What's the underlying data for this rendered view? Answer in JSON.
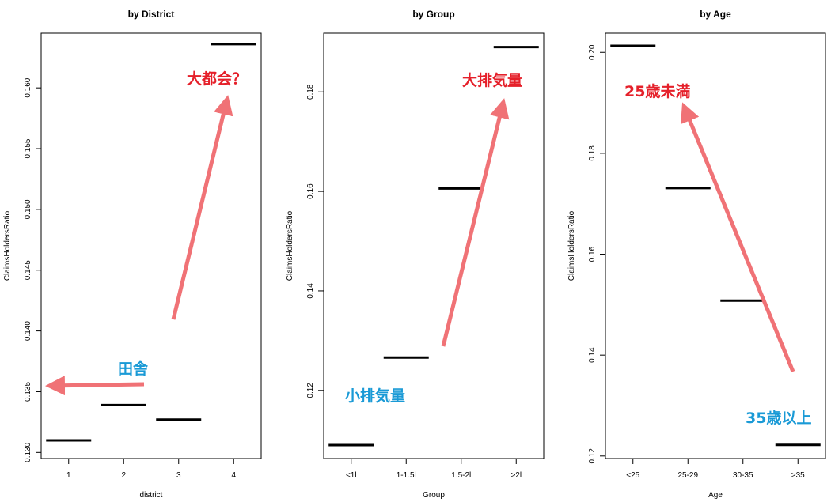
{
  "chart_data": [
    {
      "type": "step",
      "title": "by District",
      "xlabel": "district",
      "ylabel": "ClaimsHoldersRatio",
      "categories": [
        "1",
        "2",
        "3",
        "4"
      ],
      "values": [
        0.131,
        0.1339,
        0.1327,
        0.1636
      ],
      "ylim": [
        0.1295,
        0.1645
      ],
      "yticks": [
        0.13,
        0.135,
        0.14,
        0.145,
        0.15,
        0.155,
        0.16
      ],
      "ytick_labels": [
        "0.130",
        "0.135",
        "0.140",
        "0.145",
        "0.150",
        "0.155",
        "0.160"
      ],
      "annotations": [
        {
          "text": "田舎",
          "color": "#1a9ad6"
        },
        {
          "text": "大都会？",
          "color": "#e5202a"
        }
      ]
    },
    {
      "type": "step",
      "title": "by Group",
      "xlabel": "Group",
      "ylabel": "ClaimsHoldersRatio",
      "categories": [
        "<1l",
        "1-1.5l",
        "1.5-2l",
        ">2l"
      ],
      "values": [
        0.109,
        0.1266,
        0.1606,
        0.189
      ],
      "ylim": [
        0.1063,
        0.1918
      ],
      "yticks": [
        0.12,
        0.14,
        0.16,
        0.18
      ],
      "ytick_labels": [
        "0.12",
        "0.14",
        "0.16",
        "0.18"
      ],
      "annotations": [
        {
          "text": "小排気量",
          "color": "#1a9ad6"
        },
        {
          "text": "大排気量",
          "color": "#e5202a"
        }
      ]
    },
    {
      "type": "step",
      "title": "by Age",
      "xlabel": "Age",
      "ylabel": "ClaimsHoldersRatio",
      "categories": [
        "<25",
        "25-29",
        "30-35",
        ">35"
      ],
      "values": [
        0.2013,
        0.1731,
        0.1508,
        0.1222
      ],
      "ylim": [
        0.1195,
        0.2038
      ],
      "yticks": [
        0.12,
        0.14,
        0.16,
        0.18,
        0.2
      ],
      "ytick_labels": [
        "0.12",
        "0.14",
        "0.16",
        "0.18",
        "0.20"
      ],
      "annotations": [
        {
          "text": "25歳未満",
          "color": "#e5202a"
        },
        {
          "text": "35歳以上",
          "color": "#1a9ad6"
        }
      ]
    }
  ],
  "colors": {
    "arrow": "#f07276",
    "data_line": "#000000",
    "axis": "#000000"
  }
}
